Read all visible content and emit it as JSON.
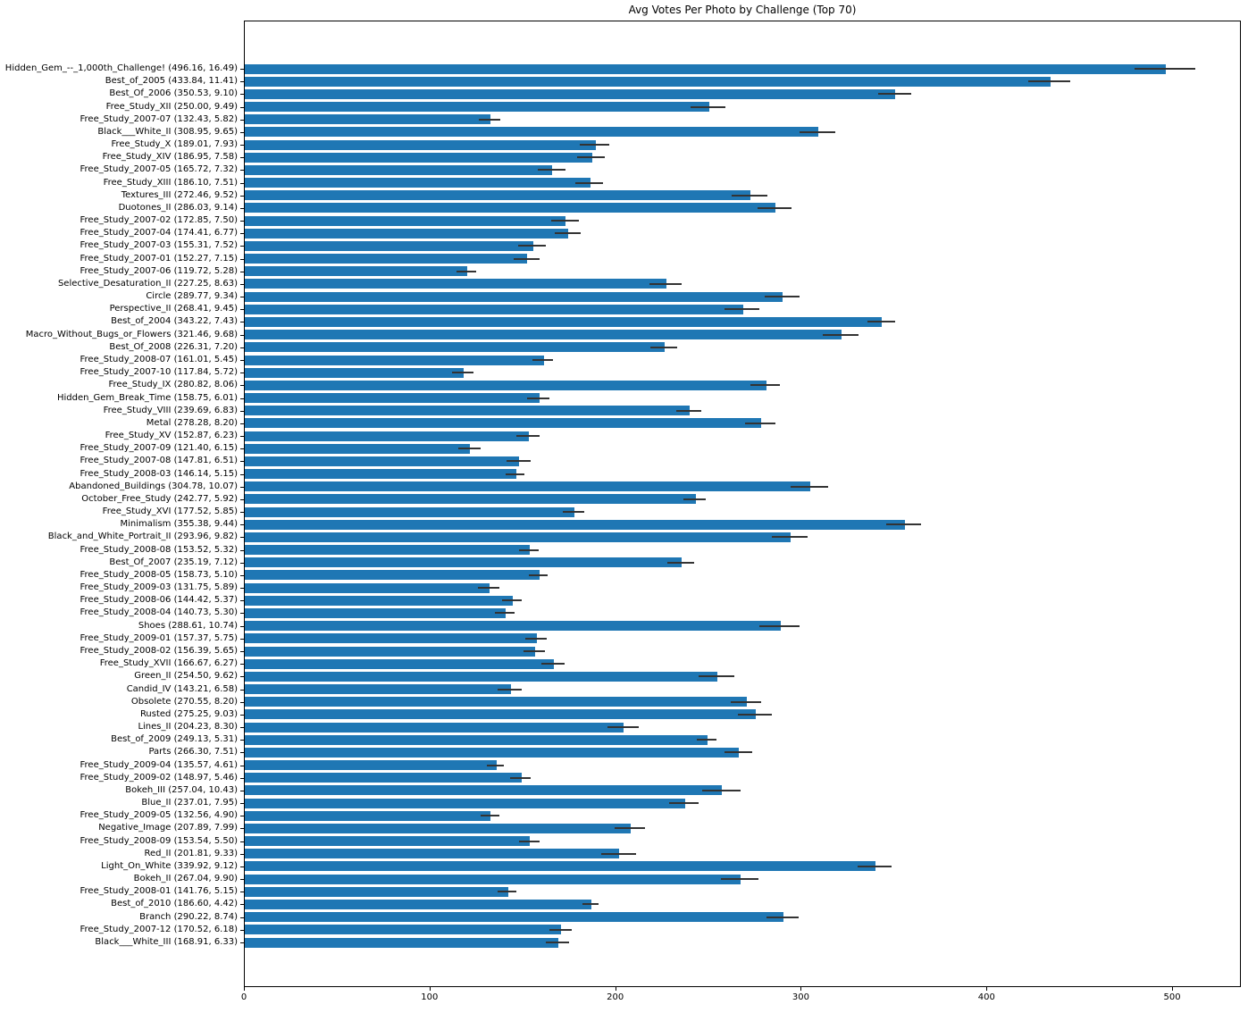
{
  "chart_data": {
    "type": "bar",
    "orientation": "horizontal",
    "title": "Avg Votes Per Photo by Challenge (Top 70)",
    "xlabel": "",
    "ylabel": "",
    "xlim": [
      0,
      537
    ],
    "xticks": [
      0,
      100,
      200,
      300,
      400,
      500
    ],
    "grid": false,
    "legend": null,
    "bar_color": "#1f77b4",
    "error_color": "#333333",
    "label_format": "{name} ({value}, {error})",
    "bars": [
      {
        "name": "Hidden_Gem_--_1,000th_Challenge!",
        "value": 496.16,
        "error": 16.49
      },
      {
        "name": "Best_of_2005",
        "value": 433.84,
        "error": 11.41
      },
      {
        "name": "Best_Of_2006",
        "value": 350.53,
        "error": 9.1
      },
      {
        "name": "Free_Study_XII",
        "value": 250.0,
        "error": 9.49
      },
      {
        "name": "Free_Study_2007-07",
        "value": 132.43,
        "error": 5.82
      },
      {
        "name": "Black___White_II",
        "value": 308.95,
        "error": 9.65
      },
      {
        "name": "Free_Study_X",
        "value": 189.01,
        "error": 7.93
      },
      {
        "name": "Free_Study_XIV",
        "value": 186.95,
        "error": 7.58
      },
      {
        "name": "Free_Study_2007-05",
        "value": 165.72,
        "error": 7.32
      },
      {
        "name": "Free_Study_XIII",
        "value": 186.1,
        "error": 7.51
      },
      {
        "name": "Textures_III",
        "value": 272.46,
        "error": 9.52
      },
      {
        "name": "Duotones_II",
        "value": 286.03,
        "error": 9.14
      },
      {
        "name": "Free_Study_2007-02",
        "value": 172.85,
        "error": 7.5
      },
      {
        "name": "Free_Study_2007-04",
        "value": 174.41,
        "error": 6.77
      },
      {
        "name": "Free_Study_2007-03",
        "value": 155.31,
        "error": 7.52
      },
      {
        "name": "Free_Study_2007-01",
        "value": 152.27,
        "error": 7.15
      },
      {
        "name": "Free_Study_2007-06",
        "value": 119.72,
        "error": 5.28
      },
      {
        "name": "Selective_Desaturation_II",
        "value": 227.25,
        "error": 8.63
      },
      {
        "name": "Circle",
        "value": 289.77,
        "error": 9.34
      },
      {
        "name": "Perspective_II",
        "value": 268.41,
        "error": 9.45
      },
      {
        "name": "Best_of_2004",
        "value": 343.22,
        "error": 7.43
      },
      {
        "name": "Macro_Without_Bugs_or_Flowers",
        "value": 321.46,
        "error": 9.68
      },
      {
        "name": "Best_Of_2008",
        "value": 226.31,
        "error": 7.2
      },
      {
        "name": "Free_Study_2008-07",
        "value": 161.01,
        "error": 5.45
      },
      {
        "name": "Free_Study_2007-10",
        "value": 117.84,
        "error": 5.72
      },
      {
        "name": "Free_Study_IX",
        "value": 280.82,
        "error": 8.06
      },
      {
        "name": "Hidden_Gem_Break_Time",
        "value": 158.75,
        "error": 6.01
      },
      {
        "name": "Free_Study_VIII",
        "value": 239.69,
        "error": 6.83
      },
      {
        "name": "Metal",
        "value": 278.28,
        "error": 8.2
      },
      {
        "name": "Free_Study_XV",
        "value": 152.87,
        "error": 6.23
      },
      {
        "name": "Free_Study_2007-09",
        "value": 121.4,
        "error": 6.15
      },
      {
        "name": "Free_Study_2007-08",
        "value": 147.81,
        "error": 6.51
      },
      {
        "name": "Free_Study_2008-03",
        "value": 146.14,
        "error": 5.15
      },
      {
        "name": "Abandoned_Buildings",
        "value": 304.78,
        "error": 10.07
      },
      {
        "name": "October_Free_Study",
        "value": 242.77,
        "error": 5.92
      },
      {
        "name": "Free_Study_XVI",
        "value": 177.52,
        "error": 5.85
      },
      {
        "name": "Minimalism",
        "value": 355.38,
        "error": 9.44
      },
      {
        "name": "Black_and_White_Portrait_II",
        "value": 293.96,
        "error": 9.82
      },
      {
        "name": "Free_Study_2008-08",
        "value": 153.52,
        "error": 5.32
      },
      {
        "name": "Best_Of_2007",
        "value": 235.19,
        "error": 7.12
      },
      {
        "name": "Free_Study_2008-05",
        "value": 158.73,
        "error": 5.1
      },
      {
        "name": "Free_Study_2009-03",
        "value": 131.75,
        "error": 5.89
      },
      {
        "name": "Free_Study_2008-06",
        "value": 144.42,
        "error": 5.37
      },
      {
        "name": "Free_Study_2008-04",
        "value": 140.73,
        "error": 5.3
      },
      {
        "name": "Shoes",
        "value": 288.61,
        "error": 10.74
      },
      {
        "name": "Free_Study_2009-01",
        "value": 157.37,
        "error": 5.75
      },
      {
        "name": "Free_Study_2008-02",
        "value": 156.39,
        "error": 5.65
      },
      {
        "name": "Free_Study_XVII",
        "value": 166.67,
        "error": 6.27
      },
      {
        "name": "Green_II",
        "value": 254.5,
        "error": 9.62
      },
      {
        "name": "Candid_IV",
        "value": 143.21,
        "error": 6.58
      },
      {
        "name": "Obsolete",
        "value": 270.55,
        "error": 8.2
      },
      {
        "name": "Rusted",
        "value": 275.25,
        "error": 9.03
      },
      {
        "name": "Lines_II",
        "value": 204.23,
        "error": 8.3
      },
      {
        "name": "Best_of_2009",
        "value": 249.13,
        "error": 5.31
      },
      {
        "name": "Parts",
        "value": 266.3,
        "error": 7.51
      },
      {
        "name": "Free_Study_2009-04",
        "value": 135.57,
        "error": 4.61
      },
      {
        "name": "Free_Study_2009-02",
        "value": 148.97,
        "error": 5.46
      },
      {
        "name": "Bokeh_III",
        "value": 257.04,
        "error": 10.43
      },
      {
        "name": "Blue_II",
        "value": 237.01,
        "error": 7.95
      },
      {
        "name": "Free_Study_2009-05",
        "value": 132.56,
        "error": 4.9
      },
      {
        "name": "Negative_Image",
        "value": 207.89,
        "error": 7.99
      },
      {
        "name": "Free_Study_2008-09",
        "value": 153.54,
        "error": 5.5
      },
      {
        "name": "Red_II",
        "value": 201.81,
        "error": 9.33
      },
      {
        "name": "Light_On_White",
        "value": 339.92,
        "error": 9.12
      },
      {
        "name": "Bokeh_II",
        "value": 267.04,
        "error": 9.9
      },
      {
        "name": "Free_Study_2008-01",
        "value": 141.76,
        "error": 5.15
      },
      {
        "name": "Best_of_2010",
        "value": 186.6,
        "error": 4.42
      },
      {
        "name": "Branch",
        "value": 290.22,
        "error": 8.74
      },
      {
        "name": "Free_Study_2007-12",
        "value": 170.52,
        "error": 6.18
      },
      {
        "name": "Black___White_III",
        "value": 168.91,
        "error": 6.33
      }
    ]
  }
}
